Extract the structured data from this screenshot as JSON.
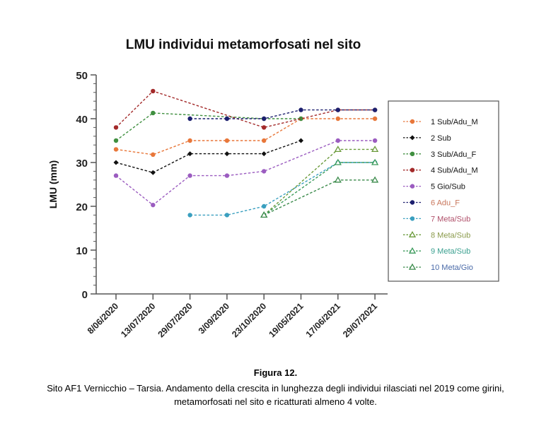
{
  "chart_data": {
    "type": "line",
    "title": "LMU individui metamorfosati nel sito",
    "xlabel": "",
    "ylabel": "LMU (mm)",
    "ylim": [
      0,
      50
    ],
    "yticks": [
      0,
      10,
      20,
      30,
      40,
      50
    ],
    "y_minor_step": 2,
    "grid": false,
    "legend_position": "right",
    "categories": [
      "8/06/2020",
      "13/07/2020",
      "29/07/2020",
      "3/09/2020",
      "23/10/2020",
      "19/05/2021",
      "17/06/2021",
      "29/07/2021"
    ],
    "series": [
      {
        "name": "1 Sub/Adu_M",
        "color": "#e8773a",
        "label_color": "#111111",
        "marker": "circle",
        "values": [
          33,
          31.8,
          35,
          35,
          35,
          40,
          40,
          40
        ]
      },
      {
        "name": "2 Sub",
        "color": "#111111",
        "label_color": "#111111",
        "marker": "diamond",
        "values": [
          30,
          27.7,
          32,
          32,
          32,
          35,
          null,
          null
        ]
      },
      {
        "name": "3 Sub/Adu_F",
        "color": "#3f8f3f",
        "label_color": "#111111",
        "marker": "circle",
        "values": [
          35,
          41.3,
          null,
          null,
          40,
          40,
          null,
          null
        ]
      },
      {
        "name": "4 Sub/Adu_M",
        "color": "#a32a2a",
        "label_color": "#111111",
        "marker": "circle",
        "values": [
          38,
          46.3,
          null,
          null,
          38,
          null,
          42,
          42
        ]
      },
      {
        "name": "5 Gio/Sub",
        "color": "#9b5cc0",
        "label_color": "#111111",
        "marker": "circle",
        "values": [
          27,
          20.3,
          27,
          27,
          28,
          null,
          35,
          35
        ]
      },
      {
        "name": "6 Adu_F",
        "color": "#1c1f6e",
        "label_color": "#c8755a",
        "marker": "circle",
        "values": [
          null,
          null,
          40,
          40,
          40,
          42,
          42,
          42
        ]
      },
      {
        "name": "7 Meta/Sub",
        "color": "#3a9fbf",
        "label_color": "#b0506a",
        "marker": "circle",
        "values": [
          null,
          null,
          18,
          18,
          20,
          null,
          30,
          30
        ]
      },
      {
        "name": "8 Meta/Sub",
        "color": "#6a9a3a",
        "label_color": "#8a9a4a",
        "marker": "triangle",
        "values": [
          null,
          null,
          null,
          null,
          18,
          null,
          33,
          33
        ]
      },
      {
        "name": "9 Meta/Sub",
        "color": "#3a9a5a",
        "label_color": "#3aa090",
        "marker": "triangle",
        "values": [
          null,
          null,
          null,
          null,
          18,
          null,
          30,
          30
        ]
      },
      {
        "name": "10 Meta/Gio",
        "color": "#3a8a4a",
        "label_color": "#4a6aa8",
        "marker": "triangle",
        "values": [
          null,
          null,
          null,
          null,
          18,
          null,
          26,
          26
        ]
      }
    ]
  },
  "caption": {
    "title": "Figura 12.",
    "text": "Sito AF1 Vernicchio – Tarsia. Andamento della crescita in lunghezza degli individui rilasciati nel 2019 come girini, metamorfosati nel sito e ricatturati almeno 4 volte."
  }
}
